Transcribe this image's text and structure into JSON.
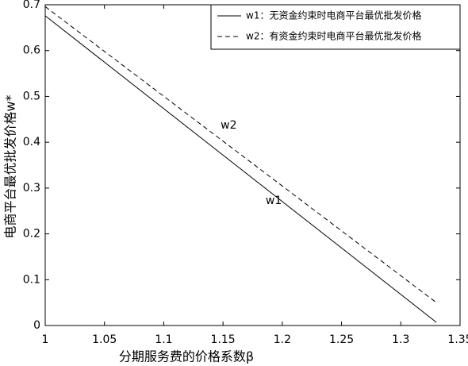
{
  "chart_data": {
    "type": "line",
    "xlabel": "分期服务费的价格系数β",
    "ylabel": "电商平台最优批发价格w*",
    "x": [
      1,
      1.33
    ],
    "series": [
      {
        "name": "w1：无资金约束时电商平台最优批发价格",
        "color": "#000000",
        "dash": "solid",
        "values": [
          0.676,
          0.007
        ]
      },
      {
        "name": "w2：有资金约束时电商平台最优批发价格",
        "color": "#000000",
        "dash": "dashed",
        "values": [
          0.696,
          0.05
        ]
      }
    ],
    "annotations": [
      {
        "text": "w2",
        "x": 1.148,
        "y": 0.437
      },
      {
        "text": "w1",
        "x": 1.186,
        "y": 0.272
      }
    ],
    "xlim": [
      1,
      1.35
    ],
    "xticks": [
      1,
      1.05,
      1.1,
      1.15,
      1.2,
      1.25,
      1.3,
      1.35
    ],
    "ylim": [
      0,
      0.7
    ],
    "yticks": [
      0,
      0.1,
      0.2,
      0.3,
      0.4,
      0.5,
      0.6,
      0.7
    ],
    "legend": "upper right"
  }
}
